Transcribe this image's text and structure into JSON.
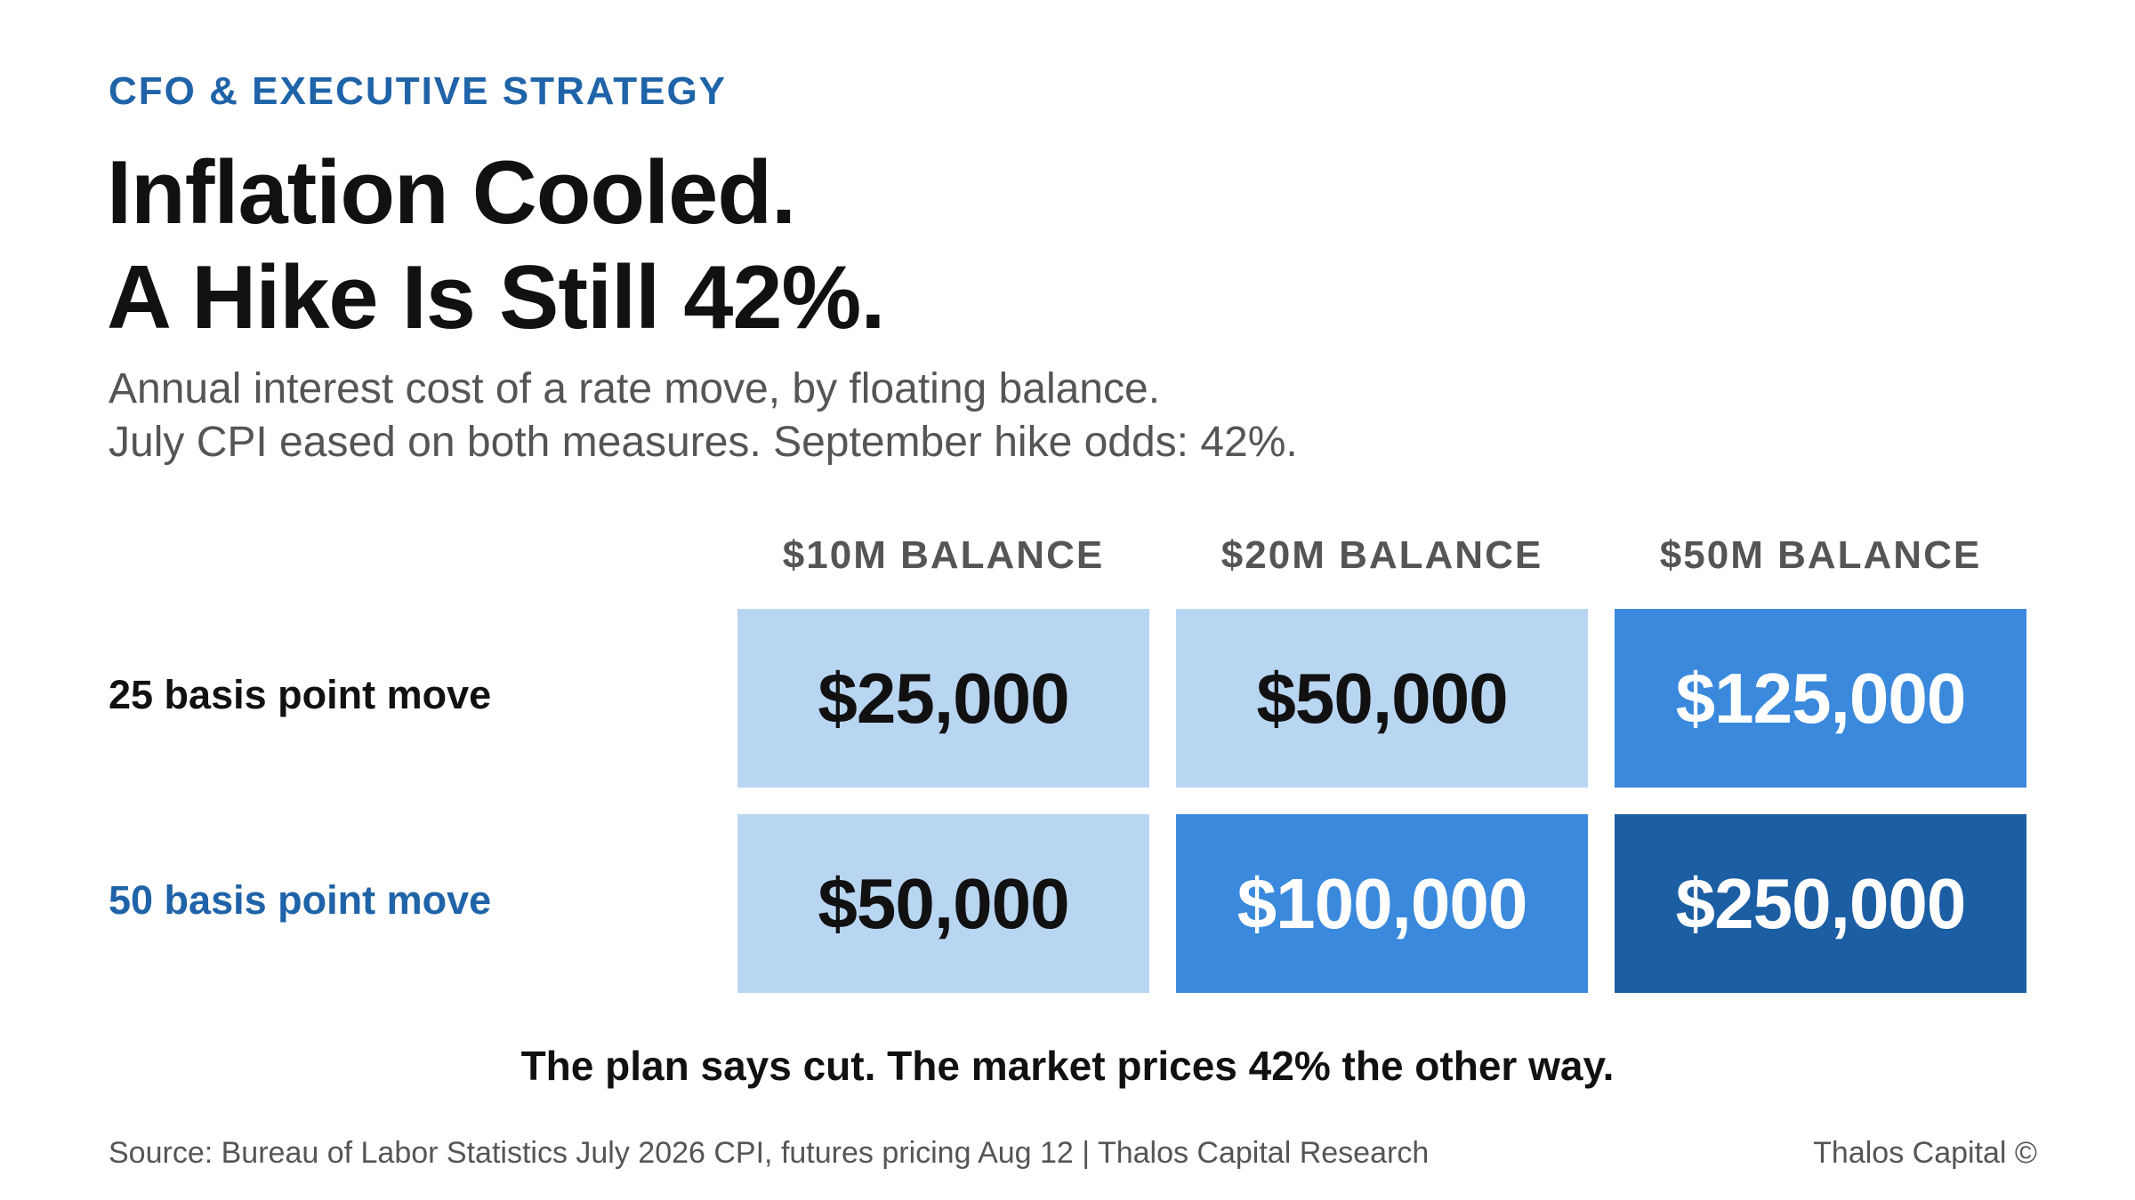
{
  "header": {
    "eyebrow": "CFO & EXECUTIVE STRATEGY",
    "title_line1": "Inflation Cooled.",
    "title_line2": "A Hike Is Still 42%.",
    "subtitle_line1": "Annual interest cost of a rate move, by floating balance.",
    "subtitle_line2": "July CPI eased on both measures. September hike odds: 42%."
  },
  "chart_data": {
    "type": "table",
    "columns": [
      "$10M BALANCE",
      "$20M BALANCE",
      "$50M BALANCE"
    ],
    "rows": [
      {
        "label": "25 basis point move",
        "label_color": "#111111",
        "values": [
          25000,
          50000,
          125000
        ],
        "display": [
          "$25,000",
          "$50,000",
          "$125,000"
        ]
      },
      {
        "label": "50 basis point move",
        "label_color": "#1f63a8",
        "values": [
          50000,
          100000,
          250000
        ],
        "display": [
          "$50,000",
          "$100,000",
          "$250,000"
        ]
      }
    ],
    "color_scale": {
      "light": "#b8d5f2",
      "medium": "#3a89dd",
      "dark": "#1b5ea3"
    }
  },
  "callout": "The plan says cut. The market prices 42% the other way.",
  "footer": {
    "source": "Source: Bureau of Labor Statistics July 2026 CPI, futures pricing Aug 12 | Thalos Capital Research",
    "brand": "Thalos Capital ©"
  }
}
